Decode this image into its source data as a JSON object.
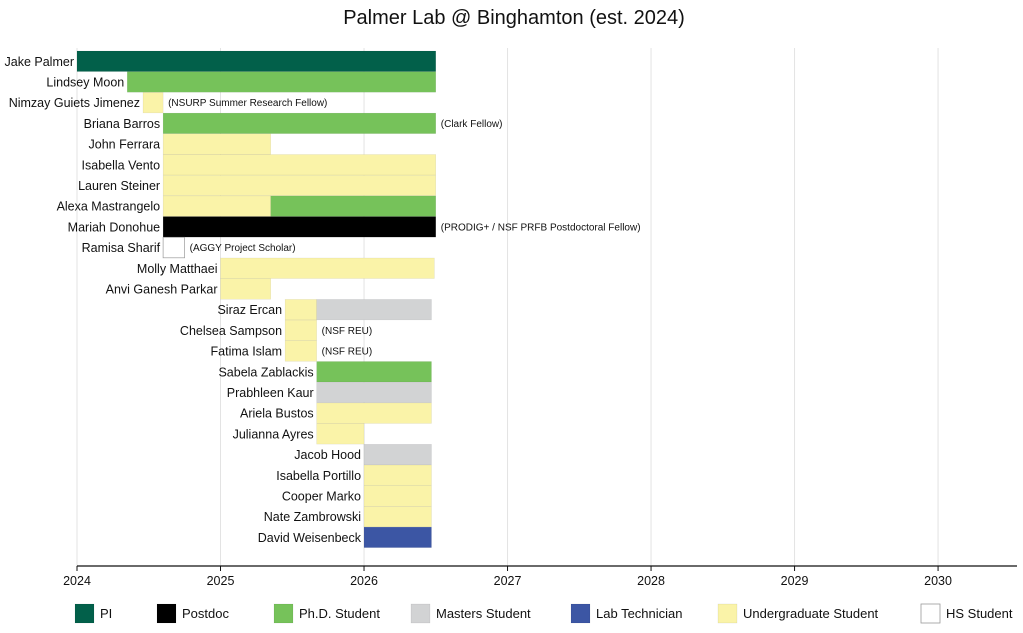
{
  "chart_data": {
    "type": "gantt",
    "title": "Palmer Lab @ Binghamton (est. 2024)",
    "x_axis": {
      "range": [
        2024,
        2030.55
      ],
      "ticks": [
        "2024",
        "2025",
        "2026",
        "2027",
        "2028",
        "2029",
        "2030"
      ],
      "grid": true
    },
    "categories": {
      "pi": {
        "label": "PI",
        "color": "#02604a"
      },
      "postdoc": {
        "label": "Postdoc",
        "color": "#000000"
      },
      "phd": {
        "label": "Ph.D. Student",
        "color": "#76c25a"
      },
      "masters": {
        "label": "Masters Student",
        "color": "#d2d3d4"
      },
      "tech": {
        "label": "Lab Technician",
        "color": "#3c56a4"
      },
      "undergrad": {
        "label": "Undergraduate Student",
        "color": "#faf3a8"
      },
      "hs": {
        "label": "HS Student",
        "color": "#ffffff"
      }
    },
    "legend_order": [
      "pi",
      "postdoc",
      "phd",
      "masters",
      "tech",
      "undergrad",
      "hs"
    ],
    "legend_position": "bottom",
    "members": [
      {
        "name": "Jake Palmer",
        "segments": [
          {
            "role": "pi",
            "start": 2024.0,
            "end": 2026.5
          }
        ]
      },
      {
        "name": "Lindsey Moon",
        "segments": [
          {
            "role": "phd",
            "start": 2024.35,
            "end": 2026.5
          }
        ]
      },
      {
        "name": "Nimzay Guiets Jimenez",
        "note": "(NSURP Summer Research Fellow)",
        "segments": [
          {
            "role": "undergrad",
            "start": 2024.46,
            "end": 2024.6
          }
        ]
      },
      {
        "name": "Briana Barros",
        "note": "(Clark Fellow)",
        "segments": [
          {
            "role": "phd",
            "start": 2024.6,
            "end": 2026.5
          }
        ]
      },
      {
        "name": "John Ferrara",
        "segments": [
          {
            "role": "undergrad",
            "start": 2024.6,
            "end": 2025.35
          }
        ]
      },
      {
        "name": "Isabella Vento",
        "segments": [
          {
            "role": "undergrad",
            "start": 2024.6,
            "end": 2026.5
          }
        ]
      },
      {
        "name": "Lauren Steiner",
        "segments": [
          {
            "role": "undergrad",
            "start": 2024.6,
            "end": 2026.5
          }
        ]
      },
      {
        "name": "Alexa Mastrangelo",
        "segments": [
          {
            "role": "undergrad",
            "start": 2024.6,
            "end": 2025.35
          },
          {
            "role": "phd",
            "start": 2025.35,
            "end": 2026.5
          }
        ]
      },
      {
        "name": "Mariah Donohue",
        "note": "(PRODIG+ / NSF PRFB Postdoctoral Fellow)",
        "segments": [
          {
            "role": "postdoc",
            "start": 2024.6,
            "end": 2026.5
          }
        ]
      },
      {
        "name": "Ramisa Sharif",
        "note": "(AGGY Project Scholar)",
        "segments": [
          {
            "role": "hs",
            "start": 2024.6,
            "end": 2024.75
          }
        ]
      },
      {
        "name": "Molly Matthaei",
        "segments": [
          {
            "role": "undergrad",
            "start": 2025.0,
            "end": 2026.49
          }
        ]
      },
      {
        "name": "Anvi Ganesh Parkar",
        "segments": [
          {
            "role": "undergrad",
            "start": 2025.0,
            "end": 2025.35
          }
        ]
      },
      {
        "name": "Siraz Ercan",
        "segments": [
          {
            "role": "undergrad",
            "start": 2025.45,
            "end": 2025.67
          },
          {
            "role": "masters",
            "start": 2025.67,
            "end": 2026.47
          }
        ]
      },
      {
        "name": "Chelsea Sampson",
        "note": "(NSF REU)",
        "segments": [
          {
            "role": "undergrad",
            "start": 2025.45,
            "end": 2025.67
          }
        ]
      },
      {
        "name": "Fatima Islam",
        "note": "(NSF REU)",
        "segments": [
          {
            "role": "undergrad",
            "start": 2025.45,
            "end": 2025.67
          }
        ]
      },
      {
        "name": "Sabela Zablackis",
        "segments": [
          {
            "role": "phd",
            "start": 2025.67,
            "end": 2026.47
          }
        ]
      },
      {
        "name": "Prabhleen Kaur",
        "segments": [
          {
            "role": "masters",
            "start": 2025.67,
            "end": 2026.47
          }
        ]
      },
      {
        "name": "Ariela Bustos",
        "segments": [
          {
            "role": "undergrad",
            "start": 2025.67,
            "end": 2026.47
          }
        ]
      },
      {
        "name": "Julianna Ayres",
        "segments": [
          {
            "role": "undergrad",
            "start": 2025.67,
            "end": 2026.0
          }
        ]
      },
      {
        "name": "Jacob Hood",
        "segments": [
          {
            "role": "masters",
            "start": 2026.0,
            "end": 2026.47
          }
        ]
      },
      {
        "name": "Isabella Portillo",
        "segments": [
          {
            "role": "undergrad",
            "start": 2026.0,
            "end": 2026.47
          }
        ]
      },
      {
        "name": "Cooper Marko",
        "segments": [
          {
            "role": "undergrad",
            "start": 2026.0,
            "end": 2026.47
          }
        ]
      },
      {
        "name": "Nate Zambrowski",
        "segments": [
          {
            "role": "undergrad",
            "start": 2026.0,
            "end": 2026.47
          }
        ]
      },
      {
        "name": "David Weisenbeck",
        "segments": [
          {
            "role": "tech",
            "start": 2026.0,
            "end": 2026.47
          }
        ]
      }
    ]
  }
}
